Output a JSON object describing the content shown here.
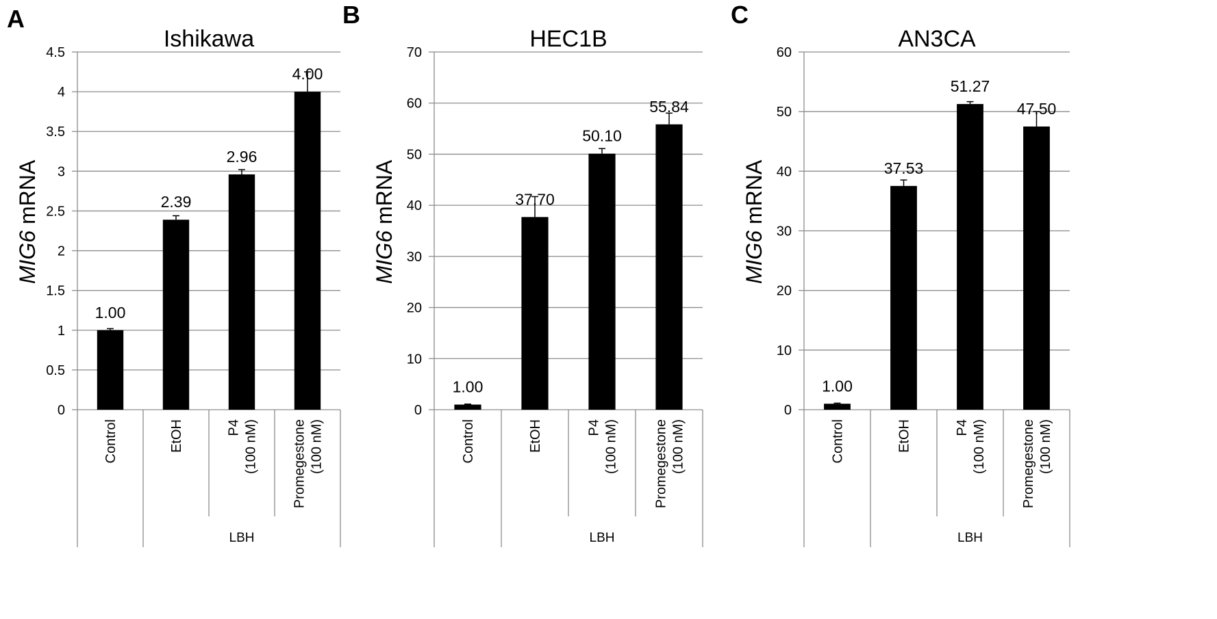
{
  "chart_data": [
    {
      "panel_letter": "A",
      "type": "bar",
      "title": "Ishikawa",
      "ylabel_italic": "MIG6",
      "ylabel_rest": " mRNA",
      "ylim": [
        0,
        4.5
      ],
      "yticks": [
        0,
        0.5,
        1,
        1.5,
        2,
        2.5,
        3,
        3.5,
        4,
        4.5
      ],
      "ytick_labels": [
        "0",
        "0.5",
        "1",
        "1.5",
        "2",
        "2.5",
        "3",
        "3.5",
        "4",
        "4.5"
      ],
      "categories": [
        [
          "Control"
        ],
        [
          "EtOH"
        ],
        [
          "P4",
          "(100 nM)"
        ],
        [
          "Promegestone",
          "(100 nM)"
        ]
      ],
      "values": [
        1.0,
        2.39,
        2.96,
        4.0
      ],
      "errors": [
        0.02,
        0.05,
        0.06,
        0.25
      ],
      "value_labels": [
        "1.00",
        "2.39",
        "2.96",
        "4.00"
      ],
      "group_label": "LBH",
      "grid": true,
      "bar_color": "#000000"
    },
    {
      "panel_letter": "B",
      "type": "bar",
      "title": "HEC1B",
      "ylabel_italic": "MIG6",
      "ylabel_rest": " mRNA",
      "ylim": [
        0,
        70
      ],
      "yticks": [
        0,
        10,
        20,
        30,
        40,
        50,
        60,
        70
      ],
      "ytick_labels": [
        "0",
        "10",
        "20",
        "30",
        "40",
        "50",
        "60",
        "70"
      ],
      "categories": [
        [
          "Control"
        ],
        [
          "EtOH"
        ],
        [
          "P4",
          "(100 nM)"
        ],
        [
          "Promegestone",
          "(100 nM)"
        ]
      ],
      "values": [
        1.0,
        37.7,
        50.1,
        55.84
      ],
      "errors": [
        0.1,
        4.0,
        1.0,
        2.2
      ],
      "value_labels": [
        "1.00",
        "37.70",
        "50.10",
        "55.84"
      ],
      "group_label": "LBH",
      "grid": true,
      "bar_color": "#000000"
    },
    {
      "panel_letter": "C",
      "type": "bar",
      "title": "AN3CA",
      "ylabel_italic": "MIG6",
      "ylabel_rest": " mRNA",
      "ylim": [
        0,
        60
      ],
      "yticks": [
        0,
        10,
        20,
        30,
        40,
        50,
        60
      ],
      "ytick_labels": [
        "0",
        "10",
        "20",
        "30",
        "40",
        "50",
        "60"
      ],
      "categories": [
        [
          "Control"
        ],
        [
          "EtOH"
        ],
        [
          "P4",
          "(100 nM)"
        ],
        [
          "Promegestone",
          "(100 nM)"
        ]
      ],
      "values": [
        1.0,
        37.53,
        51.27,
        47.5
      ],
      "errors": [
        0.1,
        1.0,
        0.4,
        2.5
      ],
      "value_labels": [
        "1.00",
        "37.53",
        "51.27",
        "47.50"
      ],
      "group_label": "LBH",
      "grid": true,
      "bar_color": "#000000"
    }
  ]
}
